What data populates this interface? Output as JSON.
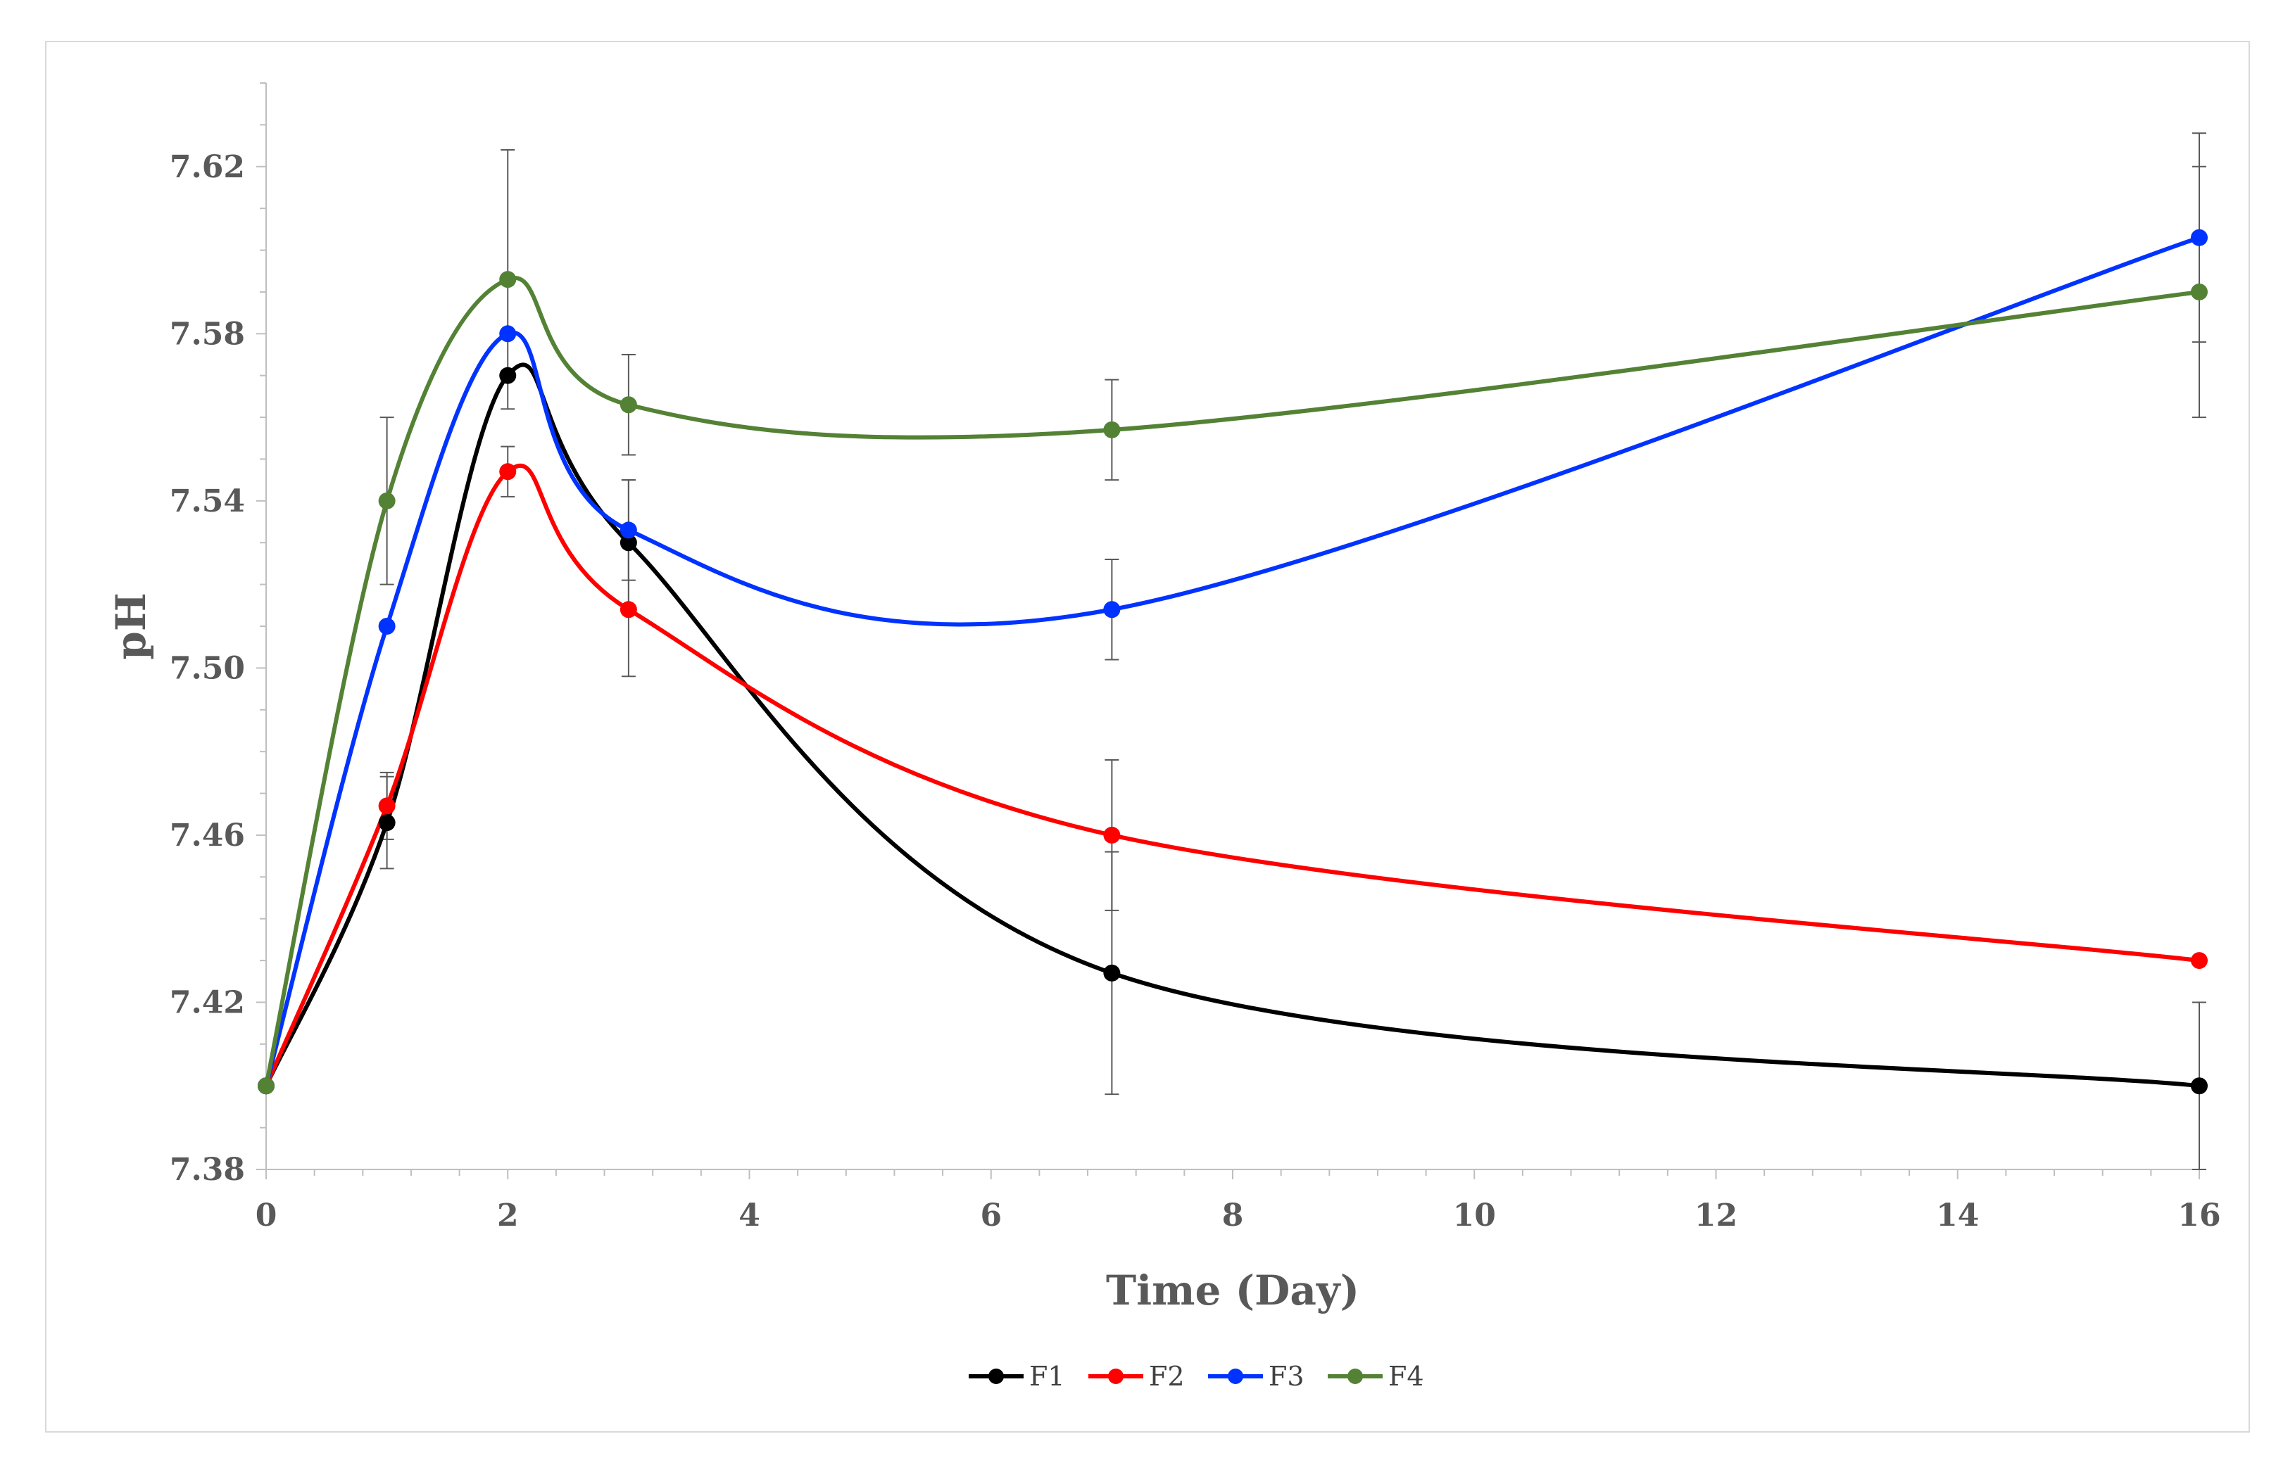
{
  "chart_data": {
    "type": "line",
    "title": "",
    "xlabel": "Time (Day)",
    "ylabel": "pH",
    "xlim": [
      0,
      16
    ],
    "ylim": [
      7.38,
      7.64
    ],
    "x_ticks": [
      "0",
      "2",
      "4",
      "6",
      "8",
      "10",
      "12",
      "14",
      "16"
    ],
    "y_ticks": [
      "7.38",
      "7.42",
      "7.46",
      "7.50",
      "7.54",
      "7.58",
      "7.62"
    ],
    "grid": false,
    "legend_position": "bottom",
    "x": [
      0,
      1,
      2,
      3,
      7,
      16
    ],
    "series": [
      {
        "name": "F1",
        "color": "#000000",
        "values": [
          7.4,
          7.463,
          7.57,
          7.53,
          7.427,
          7.4
        ],
        "errors": [
          0,
          0.011,
          0.0,
          0.015,
          0.029,
          0.02
        ]
      },
      {
        "name": "F2",
        "color": "#ff0000",
        "values": [
          7.4,
          7.467,
          7.547,
          7.514,
          7.46,
          7.43
        ],
        "errors": [
          0,
          0.008,
          0.006,
          0.016,
          0.018,
          0.0
        ]
      },
      {
        "name": "F3",
        "color": "#0033ff",
        "values": [
          7.4,
          7.51,
          7.58,
          7.533,
          7.514,
          7.603
        ],
        "errors": [
          0,
          0.0,
          0.0,
          0.012,
          0.012,
          0.025
        ]
      },
      {
        "name": "F4",
        "color": "#548235",
        "values": [
          7.4,
          7.54,
          7.593,
          7.563,
          7.557,
          7.59
        ],
        "errors": [
          0,
          0.02,
          0.031,
          0.012,
          0.012,
          0.03
        ]
      }
    ]
  }
}
